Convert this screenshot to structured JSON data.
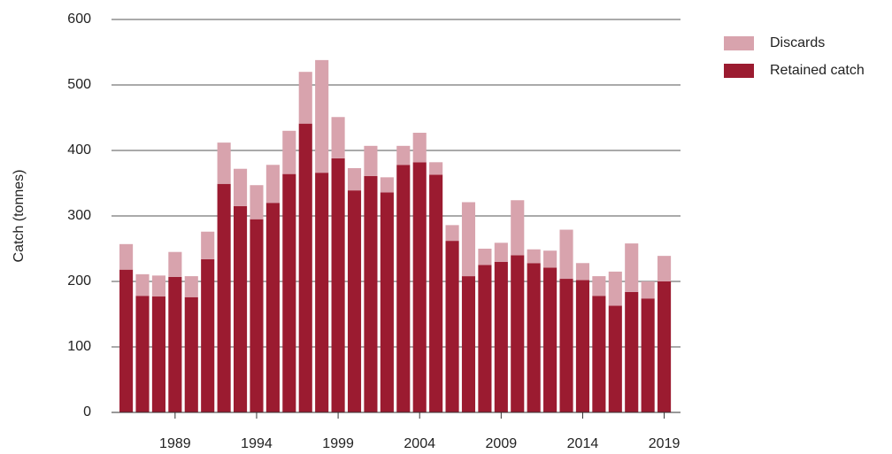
{
  "chart_data": {
    "type": "stacked-bar",
    "y_label": "Catch (tonnes)",
    "x": [
      1986,
      1987,
      1988,
      1989,
      1990,
      1991,
      1992,
      1993,
      1994,
      1995,
      1996,
      1997,
      1998,
      1999,
      2000,
      2001,
      2002,
      2003,
      2004,
      2005,
      2006,
      2007,
      2008,
      2009,
      2010,
      2011,
      2012,
      2013,
      2014,
      2015,
      2016,
      2017,
      2018,
      2019
    ],
    "series": [
      {
        "name": "Retained catch",
        "color": "#9b1b30",
        "values": [
          218,
          178,
          177,
          207,
          176,
          234,
          349,
          315,
          295,
          320,
          364,
          441,
          366,
          388,
          339,
          361,
          336,
          378,
          382,
          363,
          262,
          208,
          225,
          230,
          240,
          228,
          221,
          204,
          202,
          178,
          163,
          184,
          174,
          200
        ]
      },
      {
        "name": "Discards",
        "color": "#d8a3ad",
        "values": [
          39,
          33,
          32,
          38,
          32,
          42,
          63,
          57,
          52,
          58,
          66,
          79,
          172,
          63,
          34,
          46,
          23,
          29,
          45,
          19,
          24,
          113,
          25,
          29,
          84,
          21,
          26,
          75,
          26,
          30,
          52,
          74,
          26,
          39
        ]
      }
    ],
    "xlim": [
      1985.1,
      2020
    ],
    "xticks": [
      1989,
      1994,
      1999,
      2004,
      2009,
      2014,
      2019
    ],
    "ylim": [
      0,
      600
    ],
    "yticks": [
      0,
      100,
      200,
      300,
      400,
      500,
      600
    ],
    "grid": true,
    "legend": "right"
  }
}
